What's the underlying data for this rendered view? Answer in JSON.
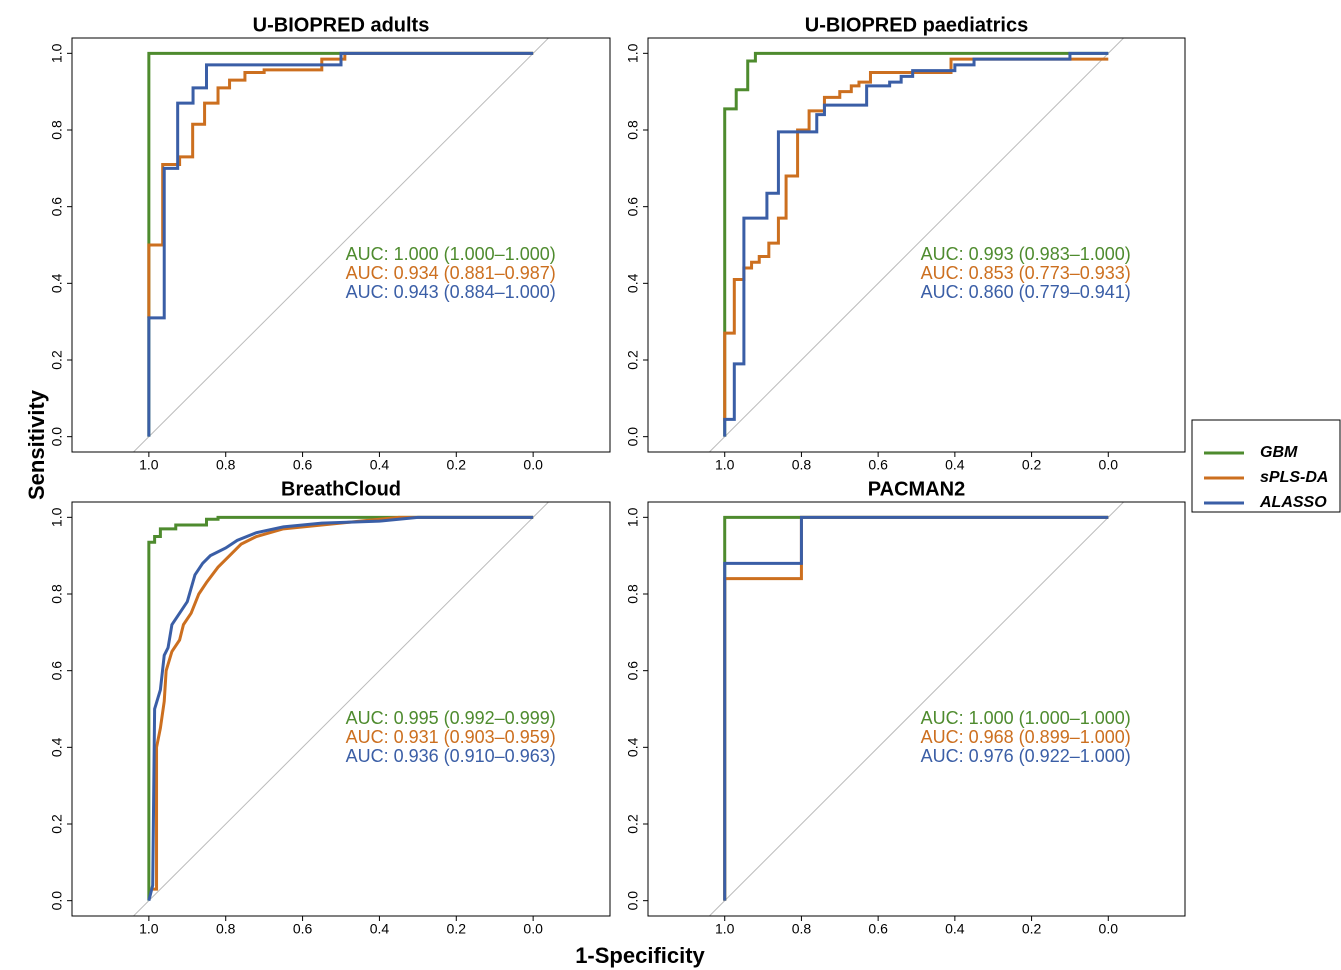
{
  "figure": {
    "xlabel": "1-Specificity",
    "ylabel": "Sensitivity"
  },
  "chart_data": [
    {
      "type": "line",
      "title": "U-BIOPRED adults",
      "xlim": [
        1.2,
        -0.2
      ],
      "ylim": [
        -0.04,
        1.04
      ],
      "xticks": [
        {
          "value": 1,
          "label": "1.0"
        },
        {
          "value": 0.8,
          "label": "0.8"
        },
        {
          "value": 0.6,
          "label": "0.6"
        },
        {
          "value": 0.4,
          "label": "0.4"
        },
        {
          "value": 0.2,
          "label": "0.2"
        },
        {
          "value": 0,
          "label": "0.0"
        }
      ],
      "yticks": [
        {
          "value": 0,
          "label": "0.0"
        },
        {
          "value": 0.2,
          "label": "0.2"
        },
        {
          "value": 0.4,
          "label": "0.4"
        },
        {
          "value": 0.6,
          "label": "0.6"
        },
        {
          "value": 0.8,
          "label": "0.8"
        },
        {
          "value": 1,
          "label": "1.0"
        }
      ],
      "series": [
        {
          "name": "GBM",
          "color": "#4e8b2e",
          "auc_label": "AUC: 1.000 (1.000–1.000)",
          "x": [
            1,
            1,
            0
          ],
          "values": [
            0,
            1,
            1
          ]
        },
        {
          "name": "sPLS-DA",
          "color": "#cc6f1f",
          "auc_label": "AUC: 0.934 (0.881–0.987)",
          "x": [
            1,
            1,
            0.964,
            0.964,
            0.92,
            0.92,
            0.886,
            0.886,
            0.855,
            0.855,
            0.82,
            0.82,
            0.79,
            0.79,
            0.75,
            0.75,
            0.7,
            0.7,
            0.55,
            0.55,
            0.49,
            0.49,
            0
          ],
          "values": [
            0.31,
            0.5,
            0.5,
            0.71,
            0.71,
            0.73,
            0.73,
            0.815,
            0.815,
            0.87,
            0.87,
            0.91,
            0.91,
            0.93,
            0.93,
            0.95,
            0.95,
            0.957,
            0.957,
            0.985,
            0.985,
            1,
            1
          ]
        },
        {
          "name": "ALASSO",
          "color": "#3a5ea6",
          "auc_label": "AUC: 0.943 (0.884–1.000)",
          "x": [
            1,
            1,
            0.96,
            0.96,
            0.925,
            0.925,
            0.885,
            0.885,
            0.85,
            0.85,
            0.5,
            0.5,
            0
          ],
          "values": [
            0,
            0.31,
            0.31,
            0.7,
            0.7,
            0.87,
            0.87,
            0.91,
            0.91,
            0.97,
            0.97,
            1,
            1
          ]
        }
      ]
    },
    {
      "type": "line",
      "title": "U-BIOPRED paediatrics",
      "xlim": [
        1.2,
        -0.2
      ],
      "ylim": [
        -0.04,
        1.04
      ],
      "xticks": [
        {
          "value": 1,
          "label": "1.0"
        },
        {
          "value": 0.8,
          "label": "0.8"
        },
        {
          "value": 0.6,
          "label": "0.6"
        },
        {
          "value": 0.4,
          "label": "0.4"
        },
        {
          "value": 0.2,
          "label": "0.2"
        },
        {
          "value": 0,
          "label": "0.0"
        }
      ],
      "yticks": [
        {
          "value": 0,
          "label": "0.0"
        },
        {
          "value": 0.2,
          "label": "0.2"
        },
        {
          "value": 0.4,
          "label": "0.4"
        },
        {
          "value": 0.6,
          "label": "0.6"
        },
        {
          "value": 0.8,
          "label": "0.8"
        },
        {
          "value": 1,
          "label": "1.0"
        }
      ],
      "series": [
        {
          "name": "GBM",
          "color": "#4e8b2e",
          "auc_label": "AUC: 0.993 (0.983–1.000)",
          "x": [
            1,
            1,
            0.97,
            0.97,
            0.94,
            0.94,
            0.92,
            0.92,
            0
          ],
          "values": [
            0,
            0.855,
            0.855,
            0.905,
            0.905,
            0.98,
            0.98,
            1,
            1
          ]
        },
        {
          "name": "sPLS-DA",
          "color": "#cc6f1f",
          "auc_label": "AUC: 0.853 (0.773–0.933)",
          "x": [
            1,
            1,
            0.975,
            0.975,
            0.95,
            0.95,
            0.93,
            0.93,
            0.91,
            0.91,
            0.885,
            0.885,
            0.86,
            0.86,
            0.84,
            0.84,
            0.81,
            0.81,
            0.78,
            0.78,
            0.74,
            0.74,
            0.7,
            0.7,
            0.67,
            0.67,
            0.65,
            0.65,
            0.62,
            0.62,
            0.41,
            0.41,
            0
          ],
          "values": [
            0.04,
            0.27,
            0.27,
            0.41,
            0.41,
            0.44,
            0.44,
            0.455,
            0.455,
            0.47,
            0.47,
            0.505,
            0.505,
            0.57,
            0.57,
            0.68,
            0.68,
            0.8,
            0.8,
            0.85,
            0.85,
            0.885,
            0.885,
            0.9,
            0.9,
            0.915,
            0.915,
            0.925,
            0.925,
            0.95,
            0.95,
            0.985,
            0.985
          ]
        },
        {
          "name": "ALASSO",
          "color": "#3a5ea6",
          "auc_label": "AUC: 0.860 (0.779–0.941)",
          "x": [
            1,
            1,
            0.975,
            0.975,
            0.95,
            0.95,
            0.89,
            0.89,
            0.86,
            0.86,
            0.76,
            0.76,
            0.74,
            0.74,
            0.63,
            0.63,
            0.57,
            0.57,
            0.54,
            0.54,
            0.51,
            0.51,
            0.4,
            0.4,
            0.35,
            0.35,
            0.1,
            0.1,
            0
          ],
          "values": [
            0,
            0.045,
            0.045,
            0.19,
            0.19,
            0.57,
            0.57,
            0.635,
            0.635,
            0.795,
            0.795,
            0.84,
            0.84,
            0.865,
            0.865,
            0.915,
            0.915,
            0.925,
            0.925,
            0.94,
            0.94,
            0.955,
            0.955,
            0.97,
            0.97,
            0.985,
            0.985,
            1,
            1
          ]
        }
      ]
    },
    {
      "type": "line",
      "title": "BreathCloud",
      "xlim": [
        1.2,
        -0.2
      ],
      "ylim": [
        -0.04,
        1.04
      ],
      "xticks": [
        {
          "value": 1,
          "label": "1.0"
        },
        {
          "value": 0.8,
          "label": "0.8"
        },
        {
          "value": 0.6,
          "label": "0.6"
        },
        {
          "value": 0.4,
          "label": "0.4"
        },
        {
          "value": 0.2,
          "label": "0.2"
        },
        {
          "value": 0,
          "label": "0.0"
        }
      ],
      "yticks": [
        {
          "value": 0,
          "label": "0.0"
        },
        {
          "value": 0.2,
          "label": "0.2"
        },
        {
          "value": 0.4,
          "label": "0.4"
        },
        {
          "value": 0.6,
          "label": "0.6"
        },
        {
          "value": 0.8,
          "label": "0.8"
        },
        {
          "value": 1,
          "label": "1.0"
        }
      ],
      "series": [
        {
          "name": "GBM",
          "color": "#4e8b2e",
          "auc_label": "AUC: 0.995 (0.992–0.999)",
          "x": [
            1,
            1,
            0.985,
            0.985,
            0.97,
            0.97,
            0.93,
            0.93,
            0.85,
            0.85,
            0.82,
            0.82,
            0
          ],
          "values": [
            0,
            0.935,
            0.935,
            0.95,
            0.95,
            0.97,
            0.97,
            0.98,
            0.98,
            0.995,
            0.995,
            1,
            1
          ]
        },
        {
          "name": "sPLS-DA",
          "color": "#cc6f1f",
          "auc_label": "AUC: 0.931 (0.903–0.959)",
          "x": [
            0.99,
            0.98,
            0.98,
            0.97,
            0.96,
            0.955,
            0.94,
            0.92,
            0.91,
            0.89,
            0.87,
            0.85,
            0.82,
            0.79,
            0.76,
            0.72,
            0.65,
            0.55,
            0.45,
            0.35,
            0
          ],
          "values": [
            0.03,
            0.03,
            0.4,
            0.45,
            0.52,
            0.6,
            0.65,
            0.68,
            0.72,
            0.75,
            0.8,
            0.83,
            0.87,
            0.9,
            0.93,
            0.95,
            0.97,
            0.98,
            0.99,
            1,
            1
          ]
        },
        {
          "name": "ALASSO",
          "color": "#3a5ea6",
          "auc_label": "AUC: 0.936 (0.910–0.963)",
          "x": [
            1,
            0.99,
            0.985,
            0.97,
            0.96,
            0.95,
            0.94,
            0.92,
            0.9,
            0.88,
            0.86,
            0.84,
            0.8,
            0.77,
            0.72,
            0.65,
            0.55,
            0.4,
            0.3,
            0
          ],
          "values": [
            0,
            0.04,
            0.5,
            0.55,
            0.64,
            0.66,
            0.72,
            0.75,
            0.78,
            0.85,
            0.88,
            0.9,
            0.92,
            0.94,
            0.96,
            0.975,
            0.985,
            0.99,
            1,
            1
          ]
        }
      ]
    },
    {
      "type": "line",
      "title": "PACMAN2",
      "xlim": [
        1.2,
        -0.2
      ],
      "ylim": [
        -0.04,
        1.04
      ],
      "xticks": [
        {
          "value": 1,
          "label": "1.0"
        },
        {
          "value": 0.8,
          "label": "0.8"
        },
        {
          "value": 0.6,
          "label": "0.6"
        },
        {
          "value": 0.4,
          "label": "0.4"
        },
        {
          "value": 0.2,
          "label": "0.2"
        },
        {
          "value": 0,
          "label": "0.0"
        }
      ],
      "yticks": [
        {
          "value": 0,
          "label": "0.0"
        },
        {
          "value": 0.2,
          "label": "0.2"
        },
        {
          "value": 0.4,
          "label": "0.4"
        },
        {
          "value": 0.6,
          "label": "0.6"
        },
        {
          "value": 0.8,
          "label": "0.8"
        },
        {
          "value": 1,
          "label": "1.0"
        }
      ],
      "series": [
        {
          "name": "GBM",
          "color": "#4e8b2e",
          "auc_label": "AUC: 1.000 (1.000–1.000)",
          "x": [
            1,
            1,
            0
          ],
          "values": [
            0,
            1,
            1
          ]
        },
        {
          "name": "sPLS-DA",
          "color": "#cc6f1f",
          "auc_label": "AUC: 0.968 (0.899–1.000)",
          "x": [
            1,
            1,
            0.8,
            0.8,
            0
          ],
          "values": [
            0,
            0.84,
            0.84,
            1,
            1
          ]
        },
        {
          "name": "ALASSO",
          "color": "#3a5ea6",
          "auc_label": "AUC: 0.976 (0.922–1.000)",
          "x": [
            1,
            1,
            0.8,
            0.8,
            0
          ],
          "values": [
            0,
            0.88,
            0.88,
            1,
            1
          ]
        }
      ]
    }
  ]
}
